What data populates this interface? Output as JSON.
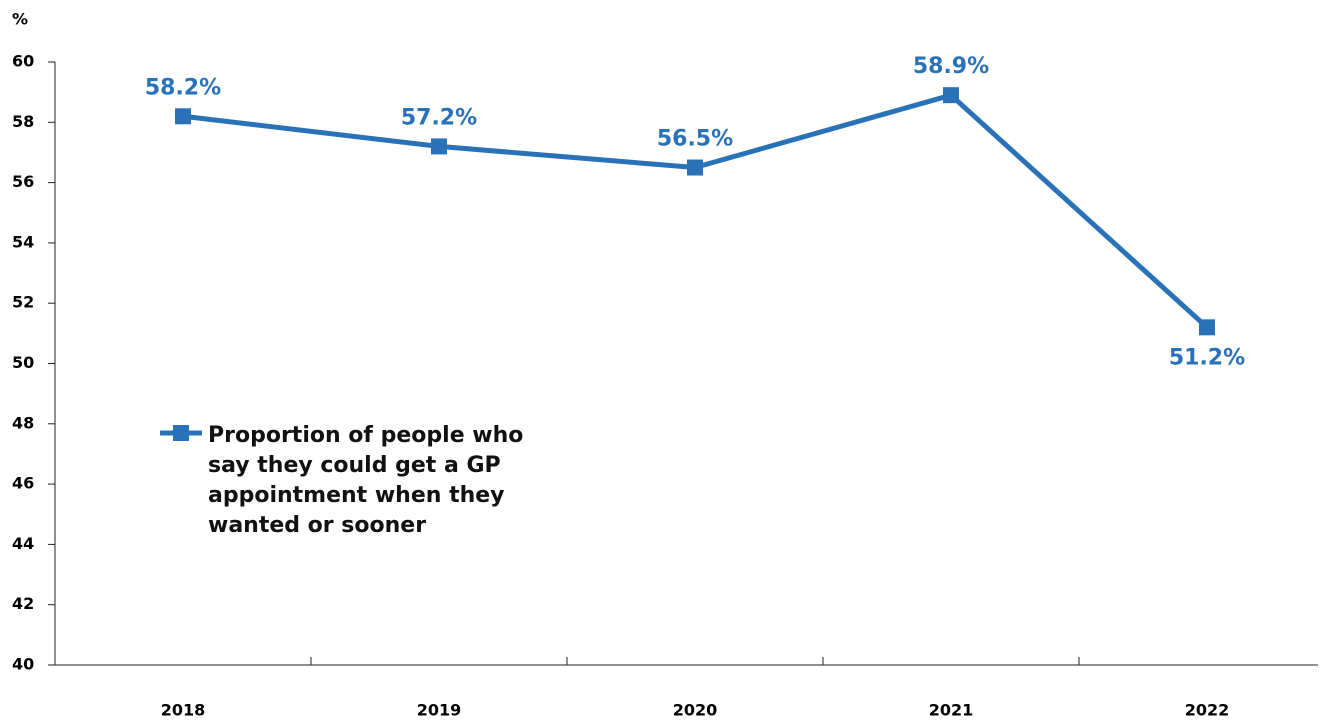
{
  "chart_data": {
    "type": "line",
    "y_label": "%",
    "categories": [
      "2018",
      "2019",
      "2020",
      "2021",
      "2022"
    ],
    "series": [
      {
        "name": "Proportion of people who say they could get a GP appointment when they wanted or sooner",
        "color": "#2a72b8",
        "values": [
          58.2,
          57.2,
          56.5,
          58.9,
          51.2
        ],
        "value_labels": [
          "58.2%",
          "57.2%",
          "56.5%",
          "58.9%",
          "51.2%"
        ]
      }
    ],
    "ylim": [
      40,
      60
    ],
    "yticks": [
      40,
      42,
      44,
      46,
      48,
      50,
      52,
      54,
      56,
      58,
      60
    ]
  }
}
